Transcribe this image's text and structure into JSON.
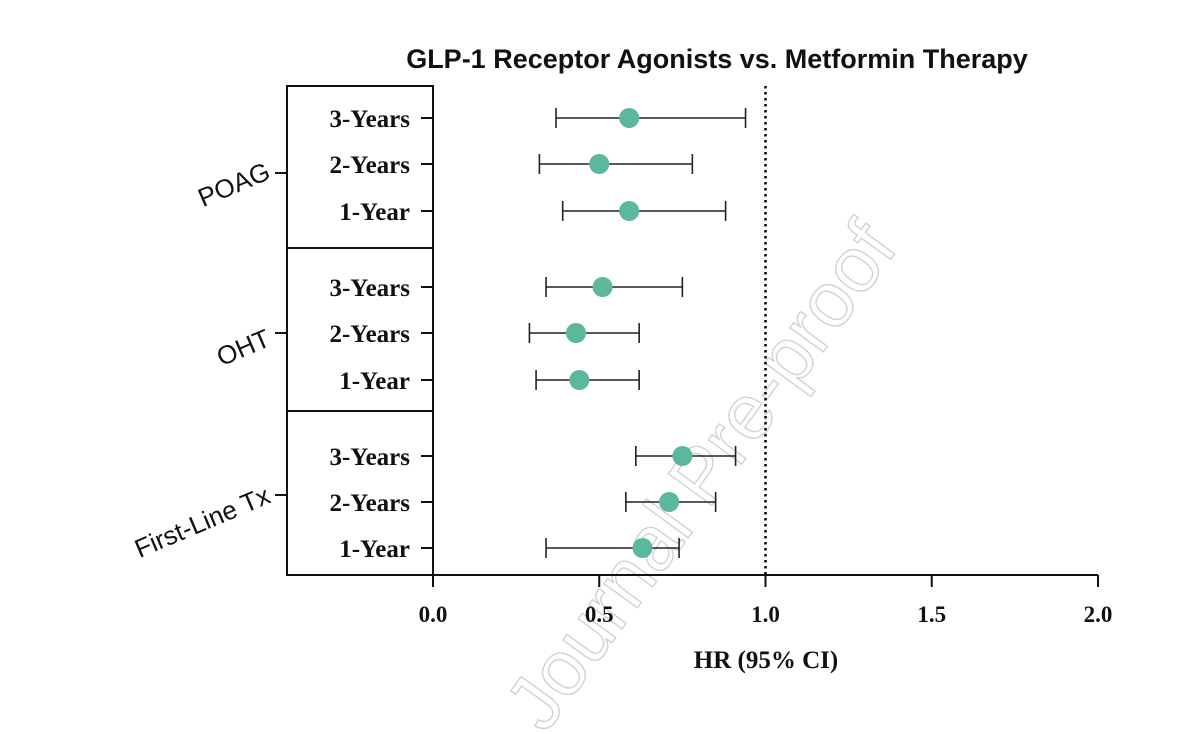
{
  "chart_data": {
    "type": "forest",
    "title": "GLP-1 Receptor Agonists vs. Metformin Therapy",
    "xlabel": "HR (95% CI)",
    "xlim": [
      0.0,
      2.0
    ],
    "xticks": [
      "0.0",
      "0.5",
      "1.0",
      "1.5",
      "2.0"
    ],
    "reference_line": 1.0,
    "marker_color": "#5bb89c",
    "groups": [
      {
        "name": "POAG",
        "rows": [
          {
            "label": "3-Years",
            "hr": 0.59,
            "lo": 0.37,
            "hi": 0.94
          },
          {
            "label": "2-Years",
            "hr": 0.5,
            "lo": 0.32,
            "hi": 0.78
          },
          {
            "label": "1-Year",
            "hr": 0.59,
            "lo": 0.39,
            "hi": 0.88
          }
        ]
      },
      {
        "name": "OHT",
        "rows": [
          {
            "label": "3-Years",
            "hr": 0.51,
            "lo": 0.34,
            "hi": 0.75
          },
          {
            "label": "2-Years",
            "hr": 0.43,
            "lo": 0.29,
            "hi": 0.62
          },
          {
            "label": "1-Year",
            "hr": 0.44,
            "lo": 0.31,
            "hi": 0.62
          }
        ]
      },
      {
        "name": "First-Line Tx",
        "rows": [
          {
            "label": "3-Years",
            "hr": 0.75,
            "lo": 0.61,
            "hi": 0.91
          },
          {
            "label": "2-Years",
            "hr": 0.71,
            "lo": 0.58,
            "hi": 0.85
          },
          {
            "label": "1-Year",
            "hr": 0.63,
            "lo": 0.34,
            "hi": 0.74
          }
        ]
      }
    ]
  },
  "watermark": "Journal Pre-proof"
}
